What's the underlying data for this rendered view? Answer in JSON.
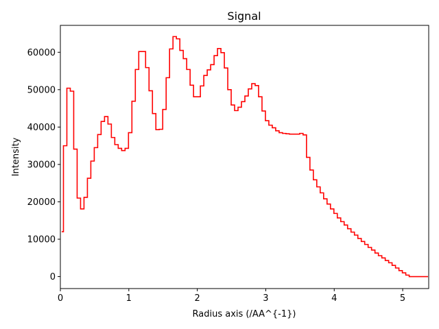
{
  "chart_data": {
    "type": "line",
    "style": "step",
    "title": "Signal",
    "xlabel": "Radius axis (/AA^{-1})",
    "ylabel": "Intensity",
    "xlim": [
      0,
      5.38
    ],
    "ylim": [
      -3200,
      67200
    ],
    "xticks": [
      0,
      1,
      2,
      3,
      4,
      5
    ],
    "xtick_labels": [
      "0",
      "1",
      "2",
      "3",
      "4",
      "5"
    ],
    "yticks": [
      0,
      10000,
      20000,
      30000,
      40000,
      50000,
      60000
    ],
    "ytick_labels": [
      "0",
      "10000",
      "20000",
      "30000",
      "40000",
      "50000",
      "60000"
    ],
    "grid": false,
    "series": [
      {
        "color": "#ff0000",
        "x": [
          0.02,
          0.07,
          0.12,
          0.17,
          0.22,
          0.27,
          0.32,
          0.37,
          0.42,
          0.47,
          0.52,
          0.57,
          0.62,
          0.67,
          0.72,
          0.77,
          0.82,
          0.87,
          0.92,
          0.97,
          1.02,
          1.07,
          1.12,
          1.17,
          1.22,
          1.27,
          1.32,
          1.37,
          1.42,
          1.47,
          1.52,
          1.57,
          1.62,
          1.67,
          1.72,
          1.77,
          1.82,
          1.87,
          1.92,
          1.97,
          2.02,
          2.07,
          2.12,
          2.17,
          2.22,
          2.27,
          2.32,
          2.37,
          2.42,
          2.47,
          2.52,
          2.57,
          2.62,
          2.67,
          2.72,
          2.77,
          2.82,
          2.87,
          2.92,
          2.97,
          3.02,
          3.07,
          3.12,
          3.17,
          3.22,
          3.27,
          3.32,
          3.37,
          3.42,
          3.47,
          3.52,
          3.57,
          3.62,
          3.67,
          3.72,
          3.77,
          3.82,
          3.87,
          3.92,
          3.97,
          4.02,
          4.07,
          4.12,
          4.17,
          4.22,
          4.27,
          4.32,
          4.37,
          4.42,
          4.47,
          4.52,
          4.57,
          4.62,
          4.67,
          4.72,
          4.77,
          4.82,
          4.87,
          4.92,
          4.97,
          5.02,
          5.07,
          5.12,
          5.17,
          5.22,
          5.27,
          5.32,
          5.37
        ],
        "values": [
          12000,
          35000,
          50400,
          49600,
          34100,
          21000,
          18100,
          21200,
          26300,
          30900,
          34500,
          38000,
          41500,
          42800,
          40800,
          37200,
          35300,
          34300,
          33700,
          34300,
          38500,
          46900,
          55400,
          60200,
          60200,
          55900,
          49700,
          43600,
          39300,
          39400,
          44700,
          53200,
          60900,
          64200,
          63600,
          60500,
          58300,
          55400,
          51200,
          48100,
          48100,
          51000,
          53800,
          55300,
          56700,
          59100,
          61000,
          59900,
          55800,
          50000,
          45900,
          44400,
          45300,
          46800,
          48300,
          50200,
          51600,
          51100,
          48100,
          44300,
          41700,
          40500,
          39800,
          39000,
          38500,
          38300,
          38200,
          38100,
          38100,
          38100,
          38300,
          37900,
          31900,
          28500,
          25900,
          24000,
          22400,
          20800,
          19400,
          18100,
          16900,
          15700,
          14700,
          13800,
          12800,
          11900,
          11100,
          10200,
          9400,
          8600,
          7800,
          7100,
          6300,
          5600,
          5000,
          4300,
          3700,
          3000,
          2300,
          1600,
          1000,
          400,
          0,
          0,
          0,
          0,
          0,
          0
        ]
      }
    ]
  }
}
